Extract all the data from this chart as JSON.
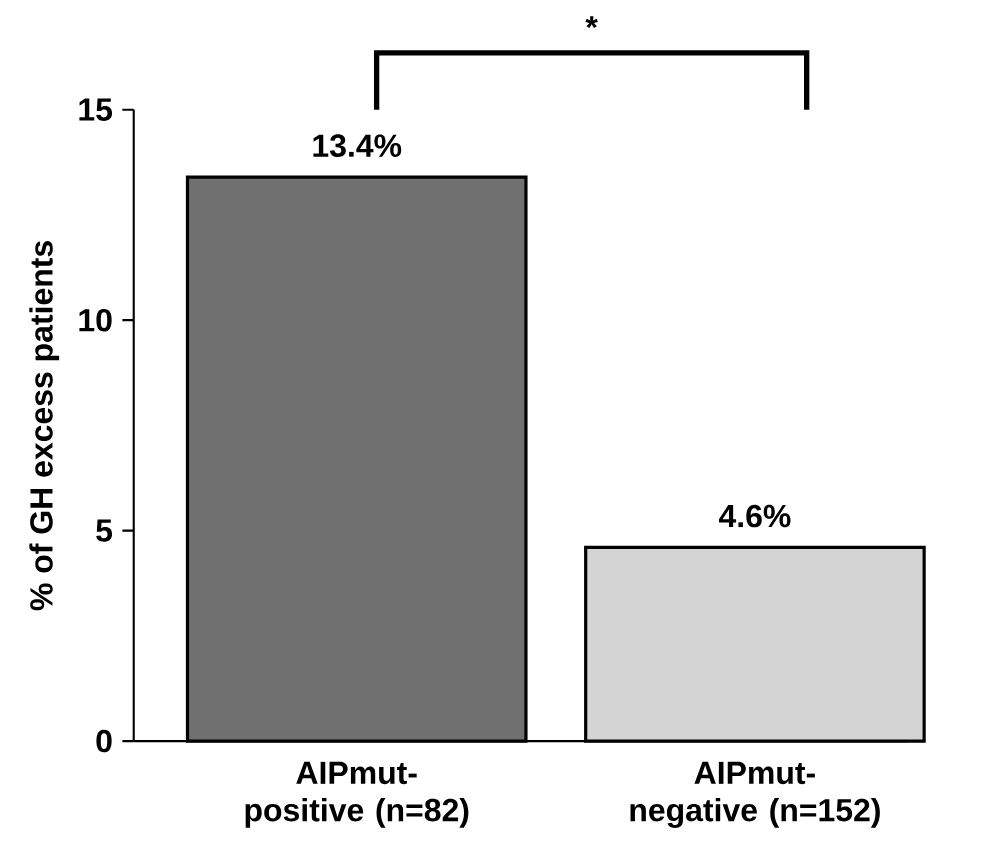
{
  "chart_data": {
    "type": "bar",
    "ylabel": "% of GH excess patients",
    "categories": [
      "AIPmut-positive (n=82)",
      "AIPmut-negative (n=152)"
    ],
    "values": [
      13.4,
      4.6
    ],
    "colors": [
      "#707070",
      "#d4d4d4"
    ],
    "value_labels": [
      "13.4%",
      "4.6%"
    ],
    "ylim": [
      0,
      15
    ],
    "yticks": [
      0,
      5,
      10,
      15
    ],
    "annotations": [
      "*"
    ]
  }
}
